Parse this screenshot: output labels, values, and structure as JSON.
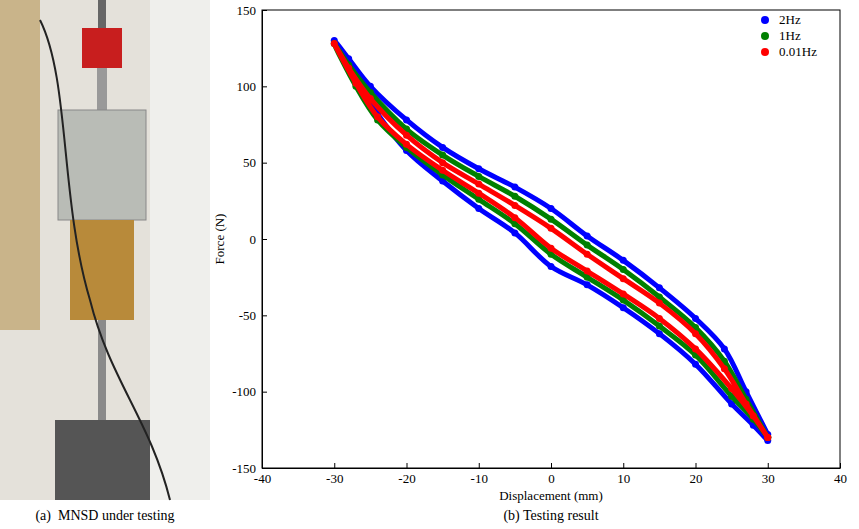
{
  "chart_data": {
    "type": "line",
    "x_label": "Displacement (mm)",
    "y_label": "Force (N)",
    "xlim": [
      -40,
      40
    ],
    "xticks": [
      -40,
      -30,
      -20,
      -10,
      0,
      10,
      20,
      30,
      40
    ],
    "ylim": [
      -150,
      150
    ],
    "yticks": [
      -150,
      -100,
      -50,
      0,
      50,
      100,
      150
    ],
    "grid": false,
    "legend": "upper right",
    "marker": "circle",
    "series": [
      {
        "name": "2Hz",
        "color": "#0000ff",
        "x": [
          30,
          27,
          24,
          20,
          15,
          10,
          5,
          0,
          -5,
          -10,
          -15,
          -20,
          -25,
          -28,
          -30,
          -27,
          -24,
          -20,
          -15,
          -10,
          -5,
          0,
          5,
          10,
          15,
          20,
          25,
          28,
          30
        ],
        "values": [
          -128,
          -100,
          -72,
          -52,
          -32,
          -14,
          2,
          20,
          34,
          46,
          60,
          78,
          100,
          118,
          130,
          105,
          82,
          58,
          38,
          20,
          4,
          -18,
          -30,
          -45,
          -62,
          -82,
          -108,
          -122,
          -132
        ]
      },
      {
        "name": "1Hz",
        "color": "#008000",
        "x": [
          30,
          27,
          24,
          20,
          15,
          10,
          5,
          0,
          -5,
          -10,
          -15,
          -20,
          -25,
          -28,
          -30,
          -27,
          -24,
          -20,
          -15,
          -10,
          -5,
          0,
          5,
          10,
          15,
          20,
          25,
          28,
          30
        ],
        "values": [
          -130,
          -105,
          -80,
          -58,
          -38,
          -20,
          -4,
          13,
          28,
          41,
          55,
          72,
          96,
          114,
          128,
          100,
          78,
          60,
          42,
          26,
          10,
          -10,
          -25,
          -40,
          -57,
          -76,
          -103,
          -118,
          -130
        ]
      },
      {
        "name": "0.01Hz",
        "color": "#ff0000",
        "x": [
          30,
          27,
          24,
          20,
          15,
          10,
          5,
          0,
          -5,
          -10,
          -15,
          -20,
          -25,
          -28,
          -30,
          -27,
          -24,
          -20,
          -15,
          -10,
          -5,
          0,
          5,
          10,
          15,
          20,
          25,
          28,
          30
        ],
        "values": [
          -130,
          -108,
          -85,
          -62,
          -42,
          -26,
          -10,
          7,
          22,
          36,
          50,
          68,
          92,
          112,
          128,
          102,
          80,
          62,
          45,
          30,
          14,
          -6,
          -21,
          -36,
          -52,
          -72,
          -98,
          -116,
          -130
        ]
      }
    ]
  },
  "captions": [
    "(a)  MNSD under testing",
    "(b) Testing result"
  ]
}
